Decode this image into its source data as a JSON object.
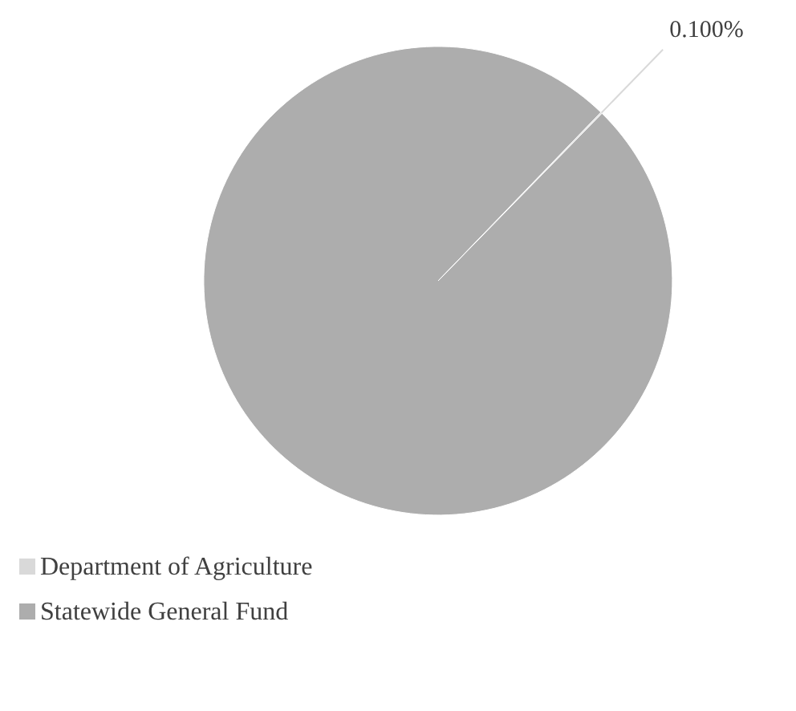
{
  "chart_data": {
    "type": "pie",
    "categories": [
      "Department of Agriculture",
      "Statewide General Fund"
    ],
    "values": [
      0.1,
      99.9
    ],
    "colors": [
      "#d9d9d9",
      "#adadad"
    ],
    "value_labels": [
      "0.100%",
      null
    ],
    "legend": "bottom"
  }
}
